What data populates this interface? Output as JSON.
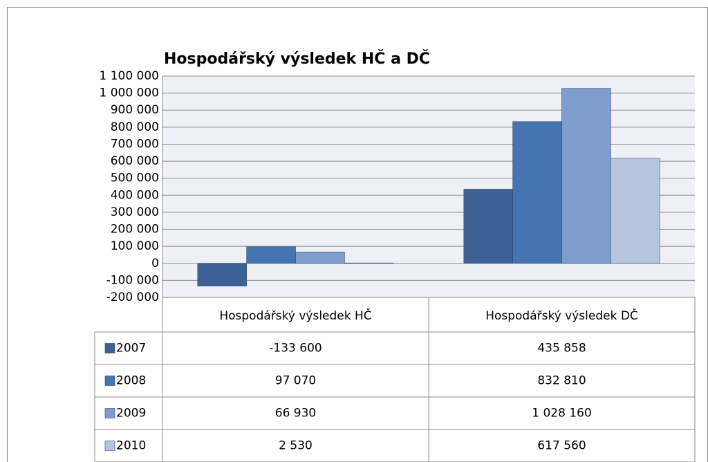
{
  "chart_data": {
    "type": "bar",
    "title": "Hospodářský výsledek HČ a DČ",
    "categories": [
      "Hospodářský výsledek HČ",
      "Hospodářský výsledek DČ"
    ],
    "series": [
      {
        "name": "2007",
        "color": "#3d6194",
        "values": [
          -133600,
          435858
        ],
        "value_labels": [
          "-133 600",
          "435 858"
        ]
      },
      {
        "name": "2008",
        "color": "#4674b2",
        "values": [
          97070,
          832810
        ],
        "value_labels": [
          "97 070",
          "832 810"
        ]
      },
      {
        "name": "2009",
        "color": "#7f9dca",
        "values": [
          66930,
          1028160
        ],
        "value_labels": [
          "66 930",
          "1 028 160"
        ]
      },
      {
        "name": "2010",
        "color": "#b6c4e0",
        "values": [
          2530,
          617560
        ],
        "value_labels": [
          "2 530",
          "617 560"
        ]
      }
    ],
    "ylim": [
      -200000,
      1100000
    ],
    "yticks": [
      {
        "value": -200000,
        "label": "-200 000"
      },
      {
        "value": -100000,
        "label": "-100 000"
      },
      0,
      {
        "value": 100000,
        "label": "100 000"
      },
      {
        "value": 200000,
        "label": "200 000"
      },
      {
        "value": 300000,
        "label": "300 000"
      },
      {
        "value": 400000,
        "label": "400 000"
      },
      {
        "value": 500000,
        "label": "500 000"
      },
      {
        "value": 600000,
        "label": "600 000"
      },
      {
        "value": 700000,
        "label": "700 000"
      },
      {
        "value": 800000,
        "label": "800 000"
      },
      {
        "value": 900000,
        "label": "900 000"
      },
      {
        "value": 1000000,
        "label": "1 000 000"
      },
      {
        "value": 1100000,
        "label": "1 100 000"
      }
    ],
    "grid": true,
    "data_table": true
  }
}
